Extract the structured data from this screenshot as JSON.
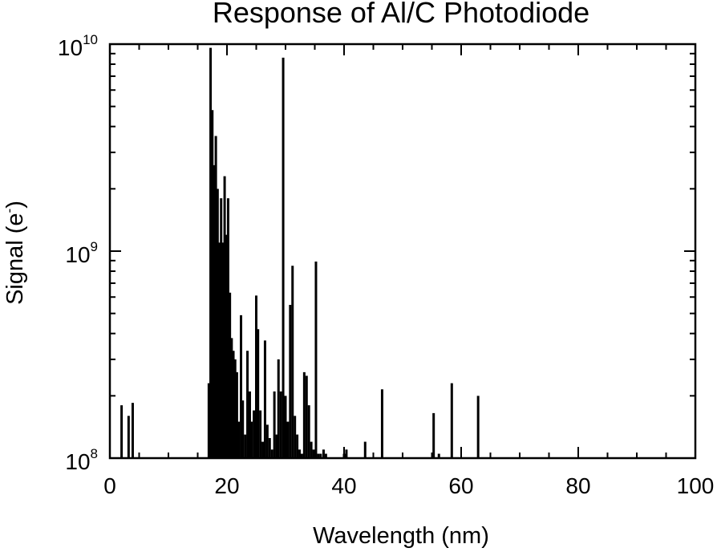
{
  "chart_data": {
    "type": "bar",
    "title": "Response of Al/C Photodiode",
    "xlabel": "Wavelength (nm)",
    "ylabel": "Signal (e",
    "ylabel_sup": "-",
    "ylabel_close": ")",
    "x_scale": "linear",
    "y_scale": "log",
    "xlim": [
      0,
      100
    ],
    "ylim": [
      100000000.0,
      10000000000.0
    ],
    "x_ticks": [
      0,
      20,
      40,
      60,
      80,
      100
    ],
    "x_tick_labels": [
      "0",
      "20",
      "40",
      "60",
      "80",
      "100"
    ],
    "y_ticks": [
      {
        "value": 100000000.0,
        "base": "10",
        "exp": "8"
      },
      {
        "value": 1000000000.0,
        "base": "10",
        "exp": "9"
      },
      {
        "value": 10000000000.0,
        "base": "10",
        "exp": "10"
      }
    ],
    "grid": false,
    "legend": "none",
    "color": "#000000",
    "x": [
      2.0,
      3.2,
      3.9,
      16.9,
      17.2,
      17.5,
      17.8,
      18.1,
      18.4,
      18.7,
      19.0,
      19.3,
      19.6,
      19.9,
      20.2,
      20.5,
      20.8,
      21.1,
      21.4,
      21.7,
      22.0,
      22.4,
      22.7,
      23.1,
      23.5,
      23.9,
      24.2,
      24.6,
      25.0,
      25.3,
      25.7,
      26.1,
      26.5,
      26.9,
      27.3,
      27.7,
      28.1,
      28.5,
      28.8,
      29.2,
      29.6,
      30.0,
      30.4,
      30.8,
      31.2,
      31.6,
      32.0,
      32.4,
      32.8,
      33.2,
      33.6,
      34.0,
      34.4,
      34.8,
      35.2,
      35.6,
      36.0,
      36.5,
      36.9,
      40.0,
      40.4,
      43.6,
      46.5,
      55.3,
      56.2,
      58.4,
      62.9
    ],
    "y": [
      180000000.0,
      160000000.0,
      185000000.0,
      230000000.0,
      9600000000.0,
      4800000000.0,
      2600000000.0,
      3600000000.0,
      2000000000.0,
      1100000000.0,
      1800000000.0,
      1100000000.0,
      2300000000.0,
      1200000000.0,
      1800000000.0,
      630000000.0,
      380000000.0,
      330000000.0,
      300000000.0,
      260000000.0,
      150000000.0,
      490000000.0,
      190000000.0,
      130000000.0,
      330000000.0,
      210000000.0,
      150000000.0,
      170000000.0,
      610000000.0,
      420000000.0,
      170000000.0,
      120000000.0,
      370000000.0,
      145000000.0,
      125000000.0,
      110000000.0,
      210000000.0,
      130000000.0,
      300000000.0,
      210000000.0,
      8600000000.0,
      200000000.0,
      150000000.0,
      550000000.0,
      850000000.0,
      160000000.0,
      130000000.0,
      110000000.0,
      105000000.0,
      260000000.0,
      250000000.0,
      180000000.0,
      120000000.0,
      110000000.0,
      890000000.0,
      105000000.0,
      105000000.0,
      110000000.0,
      105000000.0,
      105000000.0,
      110000000.0,
      120000000.0,
      215000000.0,
      165000000.0,
      105000000.0,
      230000000.0,
      200000000.0
    ]
  }
}
